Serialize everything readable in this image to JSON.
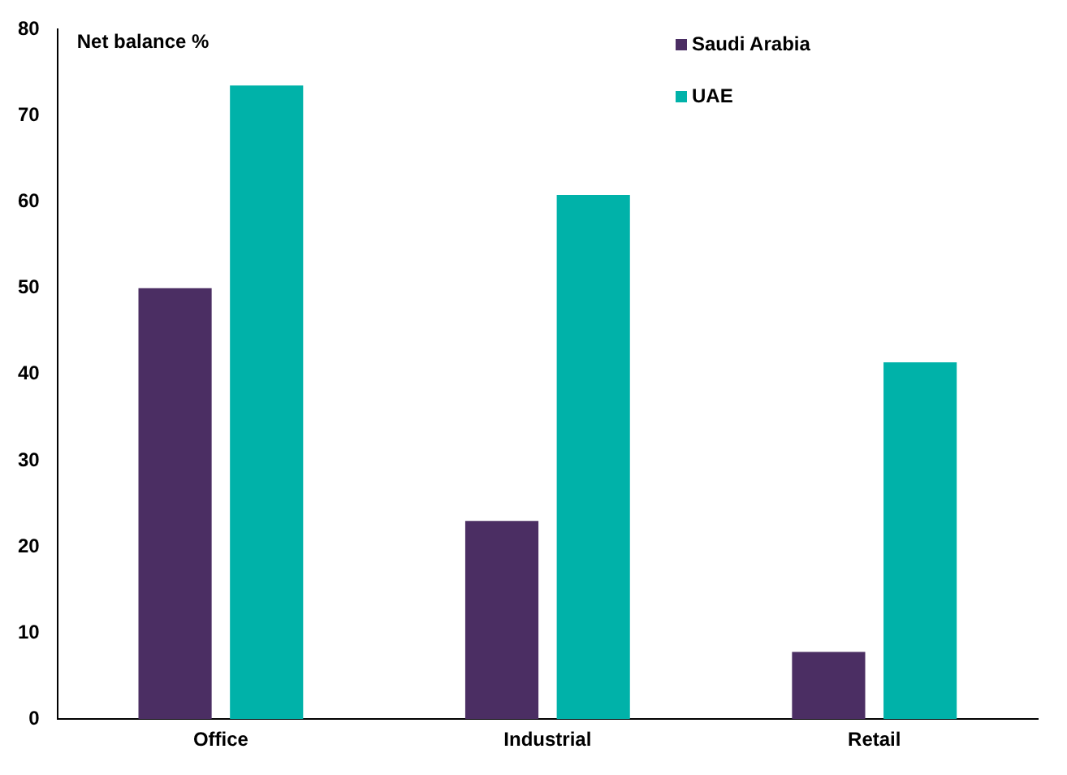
{
  "chart_data": {
    "type": "bar",
    "ylabel": "Net balance %",
    "categories": [
      "Office",
      "Industrial",
      "Retail"
    ],
    "series": [
      {
        "name": "Saudi Arabia",
        "color": "#4b2e63",
        "values": [
          50,
          23,
          7.8
        ]
      },
      {
        "name": "UAE",
        "color": "#00b2a9",
        "values": [
          73.5,
          60.8,
          41.4
        ]
      }
    ],
    "ylim": [
      0,
      80
    ],
    "yticks": [
      0,
      10,
      20,
      30,
      40,
      50,
      60,
      70,
      80
    ],
    "grid": false,
    "legend": "top right"
  }
}
